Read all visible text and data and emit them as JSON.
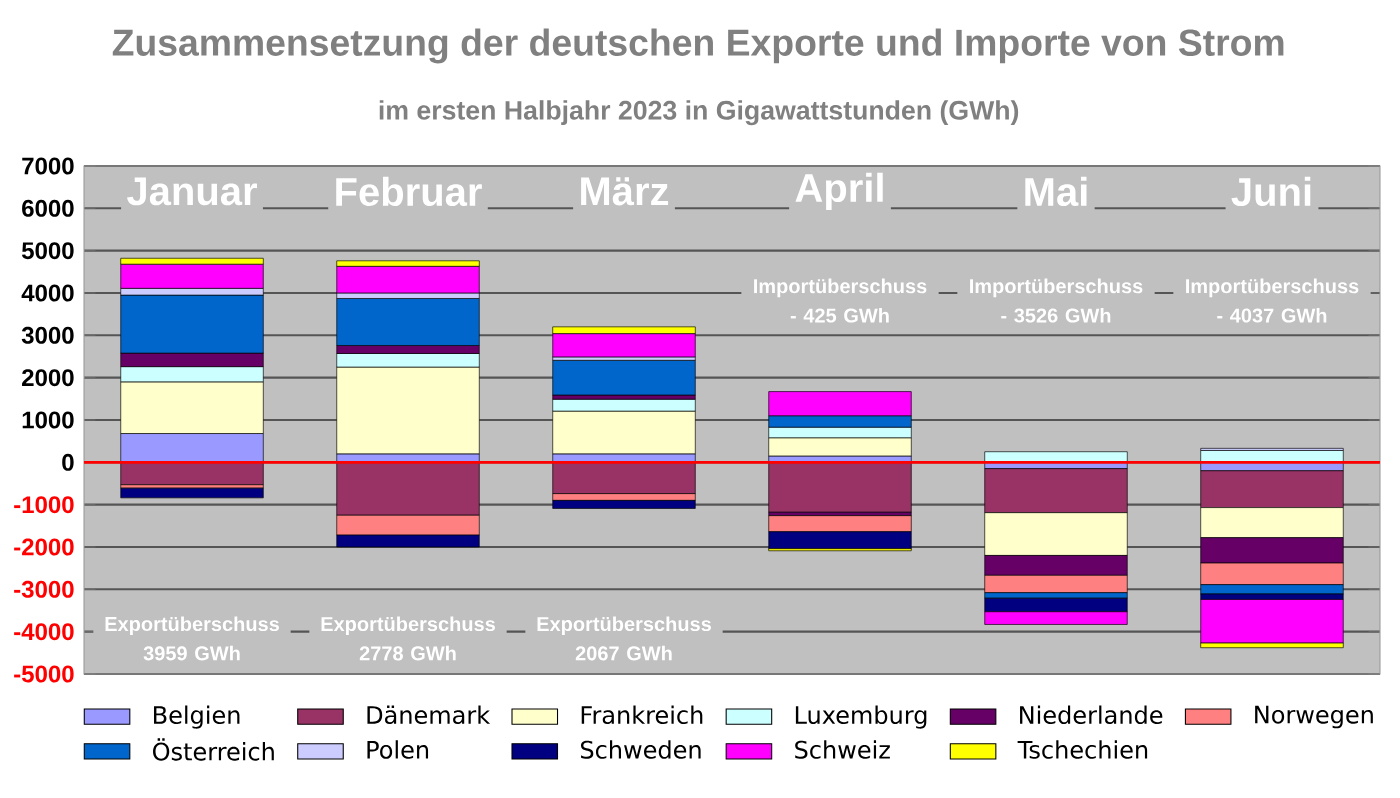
{
  "chart_data": {
    "type": "bar",
    "title": "Zusammensetzung der deutschen Exporte und Importe von Strom",
    "subtitle": "im ersten Halbjahr 2023 in Gigawattstunden (GWh)",
    "categories": [
      "Januar",
      "Februar",
      "März",
      "April",
      "Mai",
      "Juni"
    ],
    "stacked": true,
    "series": [
      {
        "name": "Belgien",
        "color": "#9999ff",
        "values": [
          680,
          200,
          200,
          150,
          -150,
          -200
        ]
      },
      {
        "name": "Dänemark",
        "color": "#993366",
        "values": [
          -530,
          -1250,
          -740,
          -1180,
          -1040,
          -870
        ]
      },
      {
        "name": "Frankreich",
        "color": "#ffffcc",
        "values": [
          1220,
          2050,
          1010,
          430,
          -1010,
          -710
        ]
      },
      {
        "name": "Luxemburg",
        "color": "#ccffff",
        "values": [
          360,
          320,
          280,
          250,
          250,
          280
        ]
      },
      {
        "name": "Niederlande",
        "color": "#660066",
        "values": [
          320,
          190,
          100,
          -80,
          -470,
          -600
        ]
      },
      {
        "name": "Norwegen",
        "color": "#ff8080",
        "values": [
          -80,
          -470,
          -160,
          -380,
          -410,
          -510
        ]
      },
      {
        "name": "Österreich",
        "color": "#0066cc",
        "values": [
          1370,
          1110,
          820,
          270,
          -130,
          -220
        ]
      },
      {
        "name": "Polen",
        "color": "#ccccff",
        "values": [
          160,
          130,
          80,
          null,
          null,
          50
        ]
      },
      {
        "name": "Schweden",
        "color": "#000080",
        "values": [
          -230,
          -280,
          -190,
          -400,
          -320,
          -130
        ]
      },
      {
        "name": "Schweiz",
        "color": "#ff00ff",
        "values": [
          570,
          630,
          550,
          570,
          -300,
          -1030
        ]
      },
      {
        "name": "Tschechien",
        "color": "#ffff00",
        "values": [
          140,
          130,
          160,
          -50,
          null,
          -110
        ]
      }
    ],
    "ylim": [
      -5000,
      7000
    ],
    "yticks": [
      -5000,
      -4000,
      -3000,
      -2000,
      -1000,
      0,
      1000,
      2000,
      3000,
      4000,
      5000,
      6000,
      7000
    ],
    "grid": "y",
    "legend": "bottom",
    "ref_lines": [
      {
        "axis": "y",
        "value": 0,
        "color": "#ff0000"
      }
    ],
    "annotations": [
      "Exportüberschuss 3959 GWh",
      "Exportüberschuss 2778 GWh",
      "Exportüberschuss 2067 GWh",
      "Importüberschuss - 425 GWh",
      "Importüberschuss - 3526 GWh",
      "Importüberschuss - 4037 GWh"
    ]
  }
}
